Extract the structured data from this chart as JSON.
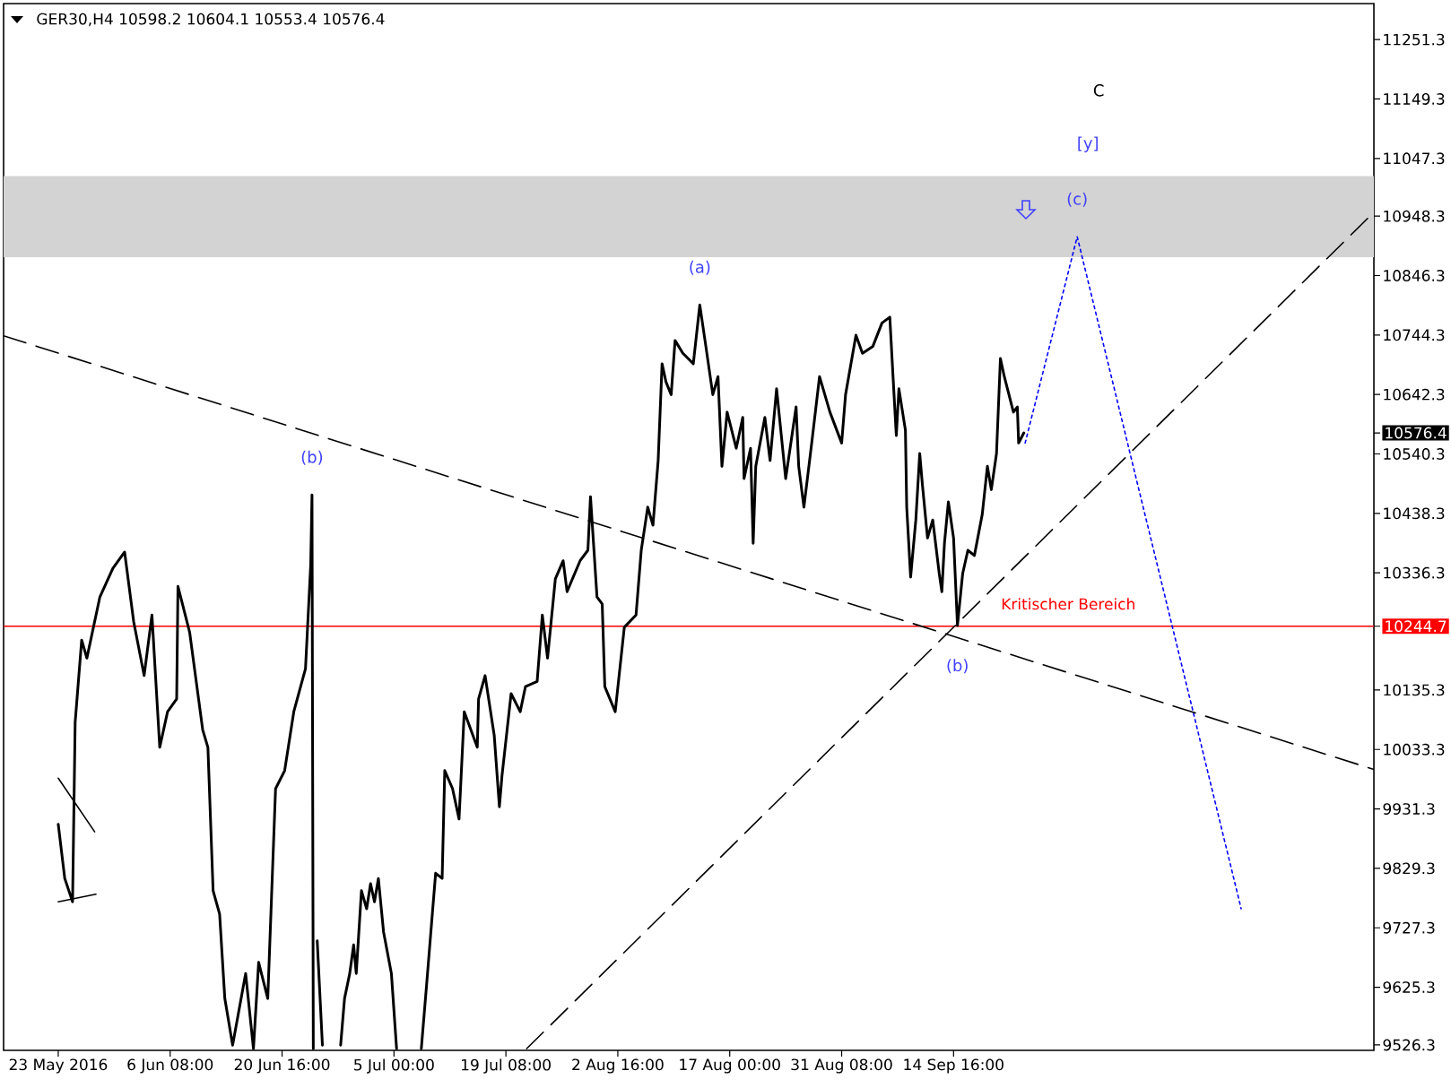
{
  "chart_data": {
    "type": "line",
    "title": "GER30,H4 10598.2 10604.1 10553.4 10576.4",
    "xlim": [
      "2016-05-16T00:00",
      "2016-11-07T12:00"
    ],
    "ylim": [
      9517,
      11313
    ],
    "xticks": [
      {
        "value": "2016-05-23T00:00",
        "label": "23 May 2016"
      },
      {
        "value": "2016-06-06T08:00",
        "label": "6 Jun 08:00"
      },
      {
        "value": "2016-06-20T16:00",
        "label": "20 Jun 16:00"
      },
      {
        "value": "2016-07-05T00:00",
        "label": "5 Jul 00:00"
      },
      {
        "value": "2016-07-19T08:00",
        "label": "19 Jul 08:00"
      },
      {
        "value": "2016-08-02T16:00",
        "label": "2 Aug 16:00"
      },
      {
        "value": "2016-08-17T00:00",
        "label": "17 Aug 00:00"
      },
      {
        "value": "2016-08-31T08:00",
        "label": "31 Aug 08:00"
      },
      {
        "value": "2016-09-14T16:00",
        "label": "14 Sep 16:00"
      }
    ],
    "yticks": [
      9526.3,
      9625.3,
      9727.3,
      9829.3,
      9931.3,
      10033.3,
      10135.3,
      10244.7,
      10336.3,
      10438.3,
      10540.3,
      10576.4,
      10642.3,
      10744.3,
      10846.3,
      10948.3,
      11047.3,
      11149.3,
      11251.3
    ],
    "series": [
      {
        "color": "#000000",
        "x": [
          "2016-05-23T00:00",
          "2016-05-23T20:00",
          "2016-05-24T20:00",
          "2016-05-25T04:00",
          "2016-05-26T00:00",
          "2016-05-26T16:00",
          "2016-05-28T08:00",
          "2016-05-30T00:00",
          "2016-05-31T12:00",
          "2016-06-01T16:00",
          "2016-06-03T00:00",
          "2016-06-04T00:00",
          "2016-06-05T00:00",
          "2016-06-06T00:00",
          "2016-06-07T04:00",
          "2016-06-07T08:00",
          "2016-06-08T20:00",
          "2016-06-10T12:00",
          "2016-06-11T04:00",
          "2016-06-11T20:00",
          "2016-06-12T16:00",
          "2016-06-13T08:00",
          "2016-06-14T08:00",
          "2016-06-16T00:00",
          "2016-06-17T00:00",
          "2016-06-17T16:00",
          "2016-06-18T20:00",
          "2016-06-19T20:00",
          "2016-06-21T00:00",
          "2016-06-22T04:00",
          "2016-06-23T16:00",
          "2016-06-24T08:00",
          "2016-06-24T12:00",
          "2016-06-24T16:00",
          "2016-06-24T20:00",
          "2016-06-25T04:00",
          "2016-06-25T20:00",
          "2016-06-27T00:00",
          "2016-06-28T04:00",
          "2016-06-28T16:00",
          "2016-06-29T08:00",
          "2016-06-29T20:00",
          "2016-06-30T04:00",
          "2016-06-30T20:00",
          "2016-07-01T12:00",
          "2016-07-02T00:00",
          "2016-07-02T12:00",
          "2016-07-03T00:00",
          "2016-07-03T16:00",
          "2016-07-04T16:00",
          "2016-07-05T08:00",
          "2016-07-06T20:00",
          "2016-07-08T12:00",
          "2016-07-09T04:00",
          "2016-07-09T16:00",
          "2016-07-10T08:00",
          "2016-07-11T04:00",
          "2016-07-11T12:00",
          "2016-07-12T12:00",
          "2016-07-13T08:00",
          "2016-07-14T00:00",
          "2016-07-15T16:00",
          "2016-07-15T20:00",
          "2016-07-16T16:00",
          "2016-07-17T20:00",
          "2016-07-18T12:00",
          "2016-07-18T20:00",
          "2016-07-20T00:00",
          "2016-07-21T04:00",
          "2016-07-21T20:00",
          "2016-07-23T08:00",
          "2016-07-24T00:00",
          "2016-07-24T16:00",
          "2016-07-25T16:00",
          "2016-07-26T16:00",
          "2016-07-27T04:00",
          "2016-07-28T20:00",
          "2016-07-29T20:00",
          "2016-07-30T04:00",
          "2016-07-31T00:00",
          "2016-07-31T16:00",
          "2016-08-01T00:00",
          "2016-08-02T08:00",
          "2016-08-03T12:00",
          "2016-08-05T00:00",
          "2016-08-05T16:00",
          "2016-08-06T12:00",
          "2016-08-07T04:00",
          "2016-08-07T20:00",
          "2016-08-08T08:00",
          "2016-08-08T20:00",
          "2016-08-09T12:00",
          "2016-08-10T00:00",
          "2016-08-11T00:00",
          "2016-08-12T08:00",
          "2016-08-13T04:00",
          "2016-08-13T20:00",
          "2016-08-14T20:00",
          "2016-08-15T12:00",
          "2016-08-16T00:00",
          "2016-08-16T16:00",
          "2016-08-17T20:00",
          "2016-08-18T16:00",
          "2016-08-18T20:00",
          "2016-08-19T16:00",
          "2016-08-20T00:00",
          "2016-08-20T08:00",
          "2016-08-21T12:00",
          "2016-08-22T04:00",
          "2016-08-23T00:00",
          "2016-08-24T04:00",
          "2016-08-25T12:00",
          "2016-08-25T20:00",
          "2016-08-26T12:00",
          "2016-08-27T12:00",
          "2016-08-28T12:00",
          "2016-08-29T20:00",
          "2016-08-31T08:00",
          "2016-08-31T20:00",
          "2016-09-02T04:00",
          "2016-09-03T00:00",
          "2016-09-04T08:00",
          "2016-09-05T12:00",
          "2016-09-06T12:00",
          "2016-09-07T00:00",
          "2016-09-07T08:00",
          "2016-09-07T16:00",
          "2016-09-08T12:00",
          "2016-09-08T16:00",
          "2016-09-09T04:00",
          "2016-09-09T20:00",
          "2016-09-10T08:00",
          "2016-09-10T16:00",
          "2016-09-11T08:00",
          "2016-09-12T00:00",
          "2016-09-12T20:00",
          "2016-09-13T04:00",
          "2016-09-13T12:00",
          "2016-09-14T00:00",
          "2016-09-14T16:00",
          "2016-09-15T04:00",
          "2016-09-15T20:00",
          "2016-09-16T12:00",
          "2016-09-17T08:00",
          "2016-09-18T08:00",
          "2016-09-19T00:00",
          "2016-09-19T12:00",
          "2016-09-20T04:00",
          "2016-09-20T16:00",
          "2016-09-21T04:00",
          "2016-09-22T08:00",
          "2016-09-22T20:00",
          "2016-09-23T00:00",
          "2016-09-23T16:00"
        ],
        "values": [
          9905,
          9812,
          9772,
          10080,
          10221,
          10190,
          10295,
          10344,
          10372,
          10252,
          10160,
          10264,
          10037,
          10098,
          10120,
          10313,
          10234,
          10067,
          10037,
          9791,
          9751,
          9606,
          9526,
          9649,
          9520,
          9668,
          9606,
          9966,
          9997,
          10098,
          10172,
          10350,
          10470,
          9520,
          null,
          9705,
          9526,
          null,
          9526,
          9606,
          9649,
          9698,
          9649,
          9791,
          9760,
          9803,
          9772,
          9812,
          9720,
          9649,
          9520,
          null,
          9520,
          9628,
          9711,
          9821,
          9812,
          9997,
          9966,
          9914,
          10098,
          10037,
          10120,
          10160,
          10058,
          9935,
          9988,
          10129,
          10098,
          10141,
          10150,
          10264,
          10190,
          10326,
          10357,
          10304,
          10357,
          10375,
          10467,
          10295,
          10283,
          10141,
          10098,
          10243,
          10264,
          10375,
          10449,
          10418,
          10529,
          10695,
          10664,
          10642,
          10735,
          10713,
          10695,
          10796,
          10735,
          10642,
          10673,
          10519,
          10612,
          10550,
          10603,
          10498,
          10550,
          10387,
          10519,
          10603,
          10529,
          10652,
          10498,
          10621,
          10519,
          10449,
          10559,
          10673,
          10612,
          10559,
          10642,
          10744,
          10713,
          10725,
          10765,
          10775,
          10652,
          10572,
          10652,
          10581,
          10449,
          10329,
          10427,
          10541,
          10489,
          10396,
          10427,
          10335,
          10304,
          10387,
          10458,
          10396,
          10246,
          10335,
          10375,
          10366,
          10436,
          10519,
          10479,
          10541,
          10704,
          10673,
          10612,
          10621,
          10559,
          10576.4
        ]
      },
      {
        "color": "#0000ff",
        "line_style": "dotted",
        "x": [
          "2016-09-23T20:00",
          "2016-09-30T12:00",
          "2016-10-21T12:00"
        ],
        "values": [
          10559,
          10913,
          9760
        ]
      },
      {
        "color": "#000000",
        "line_style": "dashed",
        "x": [
          "2016-05-16T00:00",
          "2016-11-07T12:00"
        ],
        "values": [
          10743,
          9999
        ]
      },
      {
        "color": "#000000",
        "line_style": "dashed",
        "x": [
          "2016-07-22T00:00",
          "2016-11-07T12:00"
        ],
        "values": [
          9520,
          10955
        ]
      },
      {
        "color": "#000000",
        "x": [
          "2016-05-23T00:00",
          "2016-05-27T16:00"
        ],
        "values": [
          9984,
          9892
        ]
      },
      {
        "color": "#000000",
        "x": [
          "2016-05-23T00:00",
          "2016-05-27T20:00"
        ],
        "values": [
          9772,
          9785
        ]
      }
    ],
    "ref_lines": [
      {
        "axis": "y",
        "value": 10244.7,
        "label": "Kritischer Bereich",
        "color": "#ff0000"
      }
    ],
    "bands": [
      {
        "axis": "y",
        "from": 10878,
        "to": 11017,
        "color": "#d3d3d3"
      }
    ],
    "annotations": [
      {
        "text": "(a)",
        "x": "2016-08-13T04:00",
        "y": 10796
      },
      {
        "text": "(b)",
        "x": "2016-06-24T12:00",
        "y": 10470
      },
      {
        "text": "(b)",
        "x": "2016-09-15T04:00",
        "y": 10246
      },
      {
        "text": "(c)",
        "x": "2016-09-30T12:00",
        "y": 10913
      },
      "[y]",
      "C"
    ]
  }
}
